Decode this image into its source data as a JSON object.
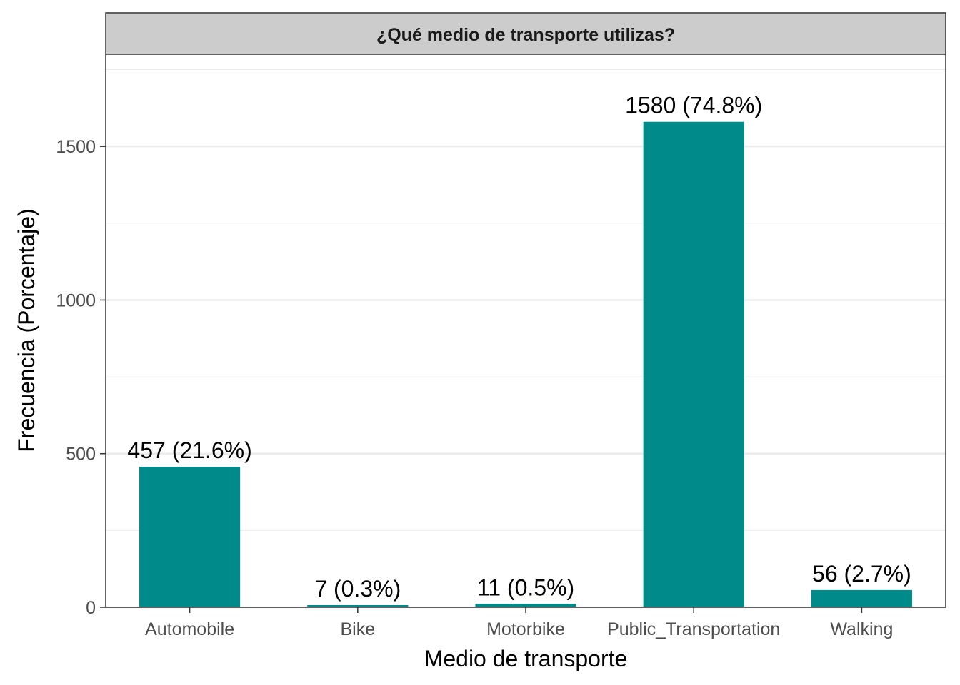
{
  "chart_data": {
    "type": "bar",
    "title": "¿Qué medio de transporte utilizas?",
    "xlabel": "Medio de transporte",
    "ylabel": "Frecuencia (Porcentaje)",
    "categories": [
      "Automobile",
      "Bike",
      "Motorbike",
      "Public_Transportation",
      "Walking"
    ],
    "values": [
      457,
      7,
      11,
      1580,
      56
    ],
    "data_labels": [
      "457 (21.6%)",
      "7 (0.3%)",
      "11 (0.5%)",
      "1580 (74.8%)",
      "56 (2.7%)"
    ],
    "ylim": [
      0,
      1800
    ],
    "y_ticks": [
      0,
      500,
      1000,
      1500
    ],
    "y_minor_ticks": [
      250,
      750,
      1250,
      1750
    ],
    "grid": true,
    "legend": "none",
    "bar_color": "#008B8B",
    "strip_color": "#CCCCCC"
  }
}
